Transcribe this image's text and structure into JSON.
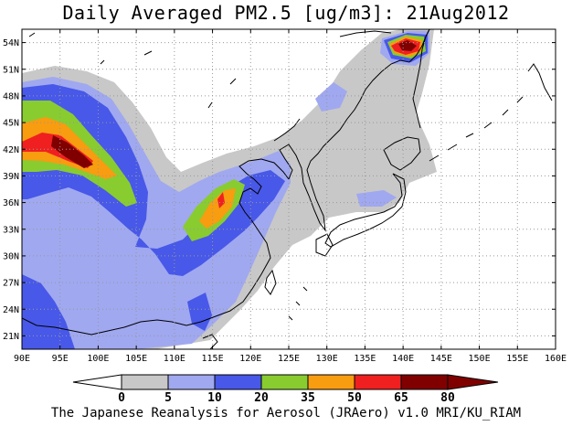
{
  "title": "Daily Averaged PM2.5 [ug/m3]: 21Aug2012",
  "footer": "The Japanese Reanalysis for Aerosol (JRAero) v1.0 MRI/KU_RIAM",
  "map": {
    "lon_range": [
      90,
      160
    ],
    "lat_range": [
      19.5,
      55.5
    ],
    "lon_ticks": [
      "90E",
      "95E",
      "100E",
      "105E",
      "110E",
      "115E",
      "120E",
      "125E",
      "130E",
      "135E",
      "140E",
      "145E",
      "150E",
      "155E",
      "160E"
    ],
    "lat_ticks": [
      "21N",
      "24N",
      "27N",
      "30N",
      "33N",
      "36N",
      "39N",
      "42N",
      "45N",
      "48N",
      "51N",
      "54N"
    ]
  },
  "colorbar": {
    "levels": [
      "0",
      "5",
      "10",
      "20",
      "35",
      "50",
      "65",
      "80"
    ],
    "colors": [
      "#ffffff",
      "#c8c8c8",
      "#a0a8f0",
      "#4858e8",
      "#88cc30",
      "#f89c10",
      "#f02020",
      "#800000"
    ]
  }
}
